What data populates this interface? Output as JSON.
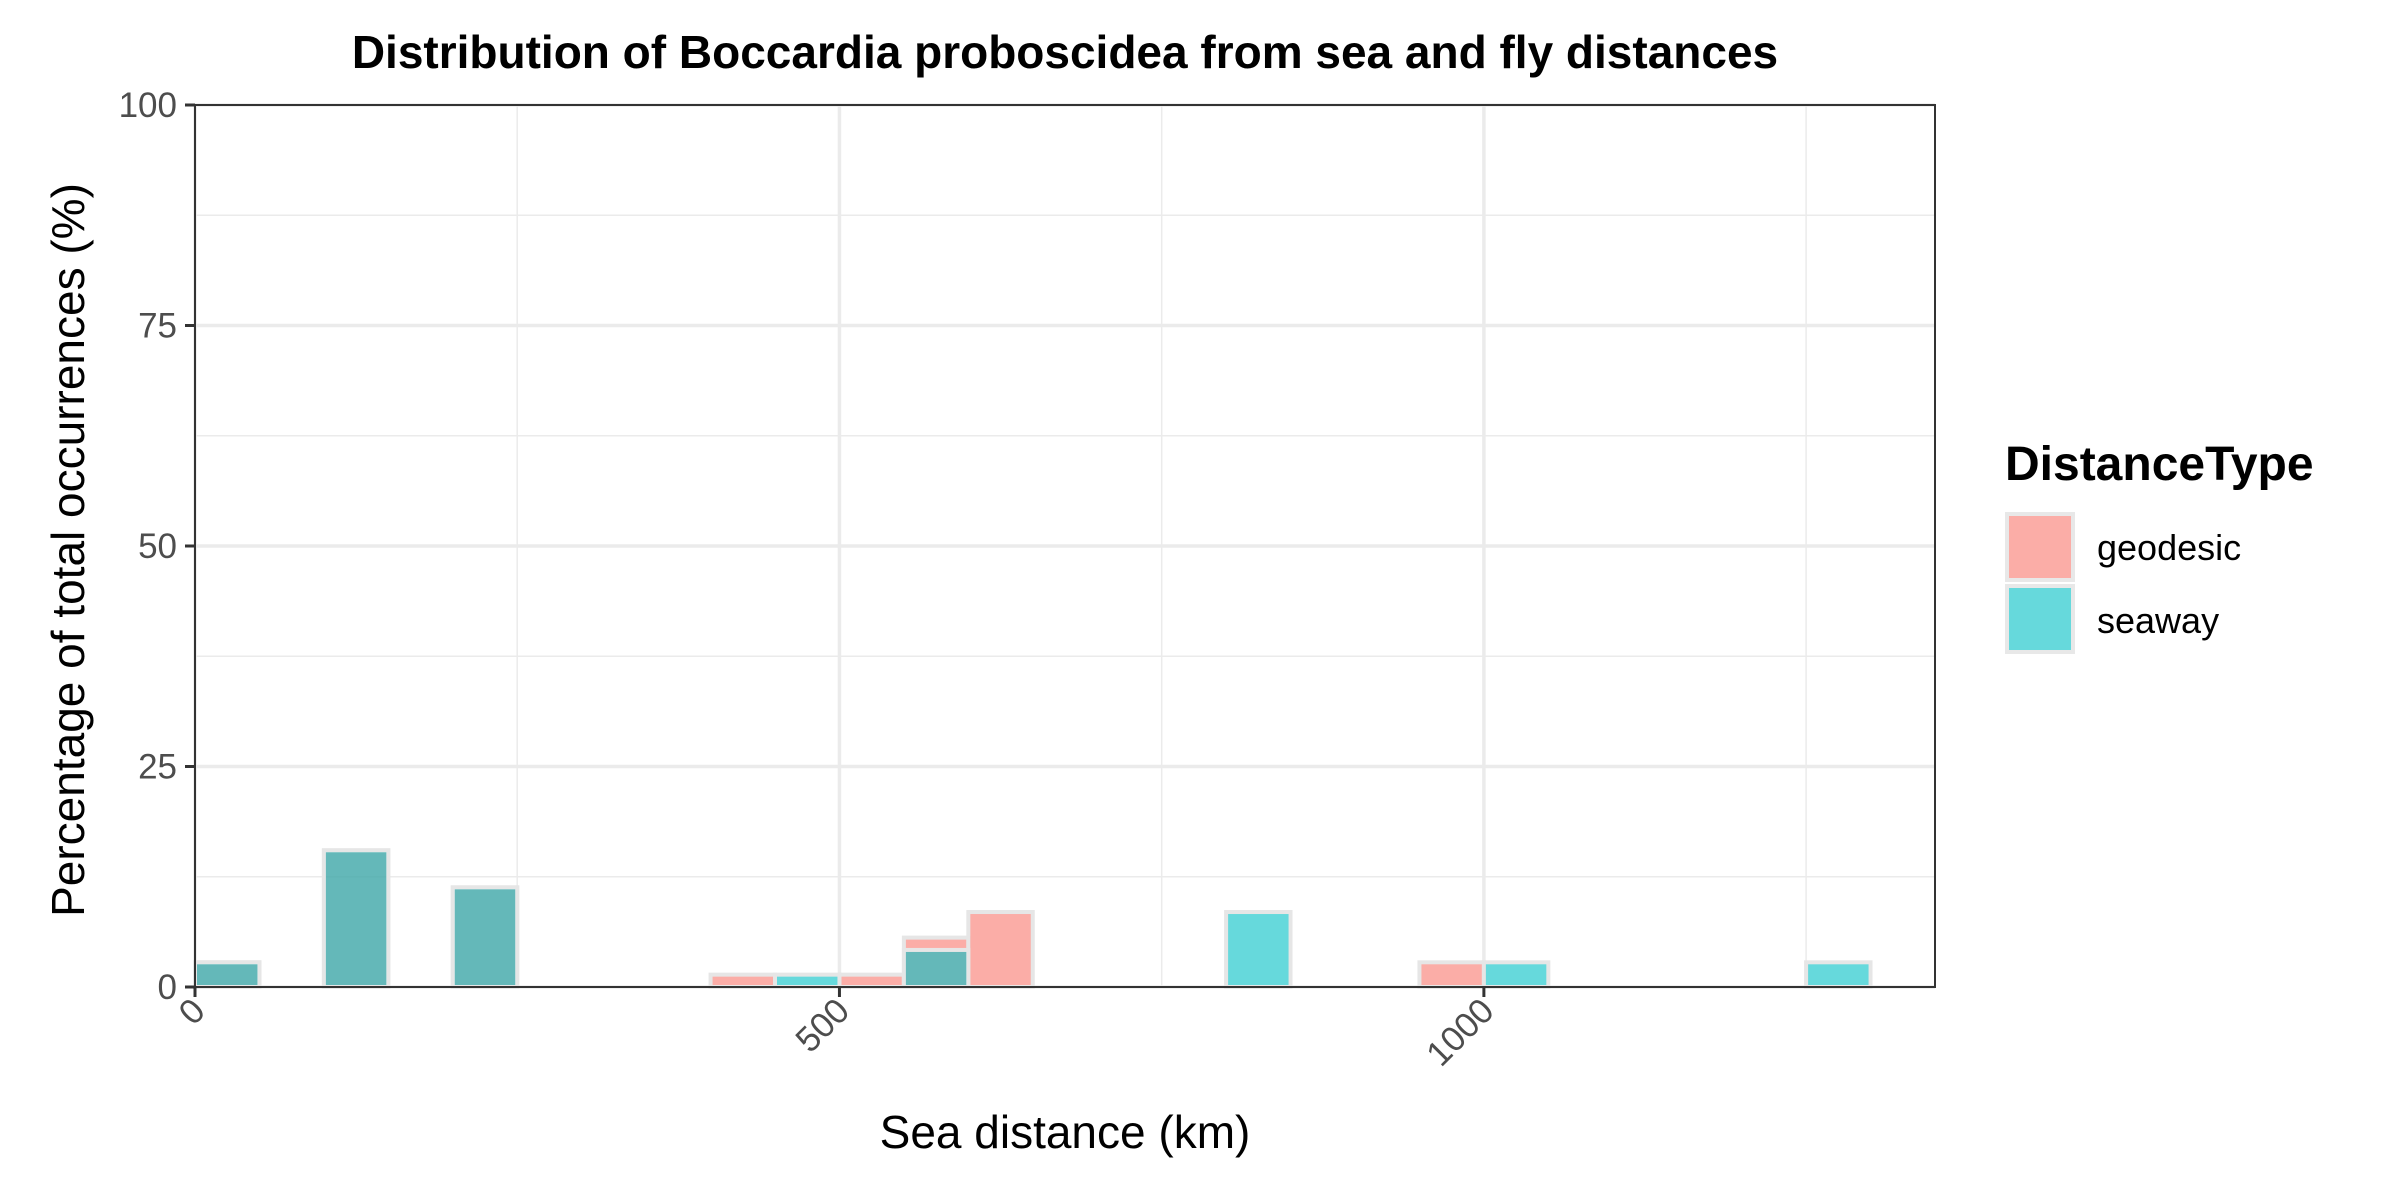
{
  "chart_data": {
    "type": "bar",
    "title": "Distribution of Boccardia proboscidea from sea and fly distances",
    "xlabel": "Sea distance (km)",
    "ylabel": "Percentage of total occurrences (%)",
    "xlim": [
      0,
      1350
    ],
    "ylim": [
      0,
      100
    ],
    "x_ticks": [
      0,
      500,
      1000
    ],
    "y_ticks": [
      0,
      25,
      50,
      75,
      100
    ],
    "y_minor_ticks": [
      12.5,
      37.5,
      62.5,
      87.5
    ],
    "x_minor_ticks": [
      250,
      750,
      1250
    ],
    "bin_width": 50,
    "grid": true,
    "legend": {
      "title": "DistanceType",
      "position": "right"
    },
    "bar_opacity": 0.6,
    "series": [
      {
        "name": "geodesic",
        "color": "#F8766D",
        "bins": [
          {
            "x_start": 0,
            "value": 2.8
          },
          {
            "x_start": 100,
            "value": 15.5
          },
          {
            "x_start": 200,
            "value": 11.3
          },
          {
            "x_start": 400,
            "value": 1.4
          },
          {
            "x_start": 500,
            "value": 1.4
          },
          {
            "x_start": 550,
            "value": 5.6
          },
          {
            "x_start": 600,
            "value": 8.5
          },
          {
            "x_start": 950,
            "value": 2.8
          }
        ]
      },
      {
        "name": "seaway",
        "color": "#00BFC4",
        "bins": [
          {
            "x_start": 0,
            "value": 2.8
          },
          {
            "x_start": 100,
            "value": 15.5
          },
          {
            "x_start": 200,
            "value": 11.3
          },
          {
            "x_start": 450,
            "value": 1.4
          },
          {
            "x_start": 550,
            "value": 4.2
          },
          {
            "x_start": 800,
            "value": 8.5
          },
          {
            "x_start": 1000,
            "value": 2.8
          },
          {
            "x_start": 1250,
            "value": 2.8
          }
        ]
      }
    ]
  }
}
